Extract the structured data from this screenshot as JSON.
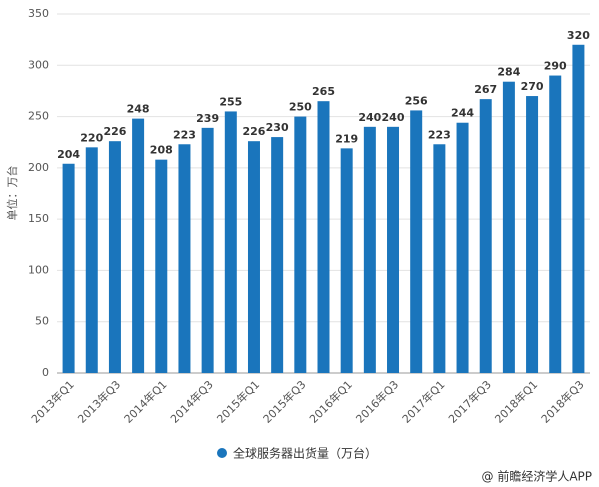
{
  "chart_data": {
    "type": "bar",
    "y_label": "单位：万台",
    "categories": [
      "2013年Q1",
      null,
      "2013年Q3",
      null,
      "2014年Q1",
      null,
      "2014年Q3",
      null,
      "2015年Q1",
      null,
      "2015年Q3",
      null,
      "2016年Q1",
      null,
      "2016年Q3",
      null,
      "2017年Q1",
      null,
      "2017年Q3",
      null,
      "2018年Q1",
      null,
      "2018年Q3"
    ],
    "series": [
      {
        "name": "全球服务器出货量（万台）",
        "color": "#1a75bc",
        "values": [
          204,
          220,
          226,
          248,
          208,
          223,
          239,
          255,
          226,
          230,
          250,
          265,
          219,
          240,
          240,
          256,
          223,
          244,
          267,
          284,
          270,
          290,
          320
        ]
      }
    ],
    "ylim": [
      0,
      350
    ],
    "yticks": [
      0,
      50,
      100,
      150,
      200,
      250,
      300,
      350
    ],
    "grid": true,
    "source": "@ 前瞻经济学人APP"
  }
}
